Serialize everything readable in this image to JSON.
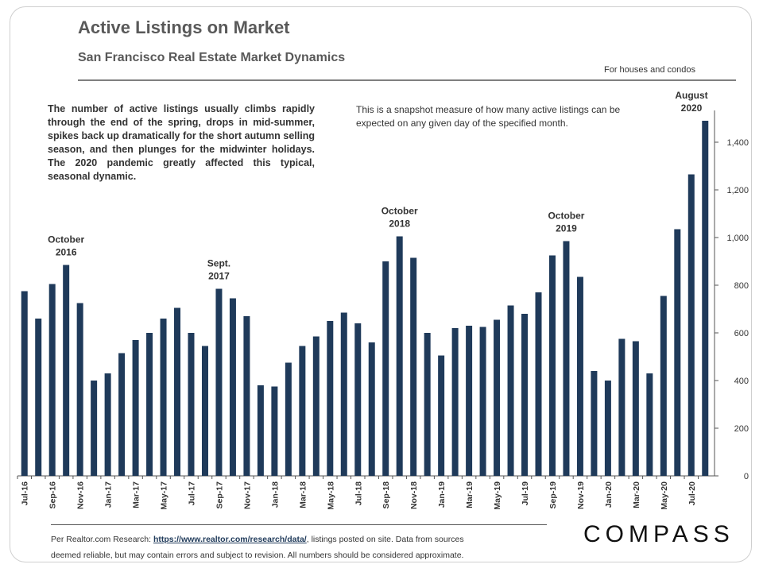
{
  "header": {
    "title": "Active Listings on Market",
    "subtitle": "San Francisco Real Estate Market Dynamics",
    "scope_note": "For houses and condos"
  },
  "notes": {
    "left": "The number of active listings usually climbs rapidly through the end of the spring, drops in mid-summer, spikes back up dramatically for the short autumn selling season, and then plunges for the midwinter holidays. The 2020 pandemic greatly affected this typical, seasonal dynamic.",
    "right": "This is a snapshot measure of how many active listings can be expected on any given day of the specified month."
  },
  "footer": {
    "prefix": "Per Realtor.com Research: ",
    "link": "https://www.realtor.com/research/data/",
    "line1_rest": ", listings posted on site. Data from sources",
    "line2": "deemed reliable, but may contain errors and subject to revision. All numbers should be considered approximate."
  },
  "logo": "COMPASS",
  "chart_data": {
    "type": "bar",
    "title": "Active Listings on Market",
    "bar_color": "#1f3a5a",
    "y_axis_side": "right",
    "ylim": [
      0,
      1500
    ],
    "yticks": [
      0,
      200,
      400,
      600,
      800,
      1000,
      1200,
      1400
    ],
    "ytick_labels": [
      "0",
      "200",
      "400",
      "600",
      "800",
      "1,000",
      "1,200",
      "1,400"
    ],
    "categories": [
      "Jul-16",
      "Aug-16",
      "Sep-16",
      "Oct-16",
      "Nov-16",
      "Dec-16",
      "Jan-17",
      "Feb-17",
      "Mar-17",
      "Apr-17",
      "May-17",
      "Jun-17",
      "Jul-17",
      "Aug-17",
      "Sep-17",
      "Oct-17",
      "Nov-17",
      "Dec-17",
      "Jan-18",
      "Feb-18",
      "Mar-18",
      "Apr-18",
      "May-18",
      "Jun-18",
      "Jul-18",
      "Aug-18",
      "Sep-18",
      "Oct-18",
      "Nov-18",
      "Dec-18",
      "Jan-19",
      "Feb-19",
      "Mar-19",
      "Apr-19",
      "May-19",
      "Jun-19",
      "Jul-19",
      "Aug-19",
      "Sep-19",
      "Oct-19",
      "Nov-19",
      "Dec-19",
      "Jan-20",
      "Feb-20",
      "Mar-20",
      "Apr-20",
      "May-20",
      "Jun-20",
      "Jul-20",
      "Aug-20"
    ],
    "tick_label_categories": [
      "Jul-16",
      "Sep-16",
      "Nov-16",
      "Jan-17",
      "Mar-17",
      "May-17",
      "Jul-17",
      "Sep-17",
      "Nov-17",
      "Jan-18",
      "Mar-18",
      "May-18",
      "Jul-18",
      "Sep-18",
      "Nov-18",
      "Jan-19",
      "Mar-19",
      "May-19",
      "Jul-19",
      "Sep-19",
      "Nov-19",
      "Jan-20",
      "Mar-20",
      "May-20",
      "Jul-20"
    ],
    "values": [
      775,
      660,
      805,
      885,
      725,
      400,
      430,
      515,
      570,
      600,
      660,
      705,
      600,
      545,
      785,
      745,
      670,
      380,
      375,
      475,
      545,
      585,
      650,
      685,
      640,
      560,
      900,
      1005,
      915,
      600,
      505,
      620,
      630,
      625,
      655,
      715,
      680,
      770,
      925,
      985,
      835,
      440,
      400,
      575,
      565,
      430,
      755,
      1035,
      1265,
      1490
    ],
    "annotations": [
      {
        "category": "Oct-16",
        "lines": [
          "October",
          "2016"
        ]
      },
      {
        "category": "Sep-17",
        "lines": [
          "Sept.",
          "2017"
        ]
      },
      {
        "category": "Oct-18",
        "lines": [
          "October",
          "2018"
        ]
      },
      {
        "category": "Oct-19",
        "lines": [
          "October",
          "2019"
        ]
      },
      {
        "category": "Aug-20",
        "lines": [
          "August",
          "2020"
        ]
      }
    ]
  }
}
